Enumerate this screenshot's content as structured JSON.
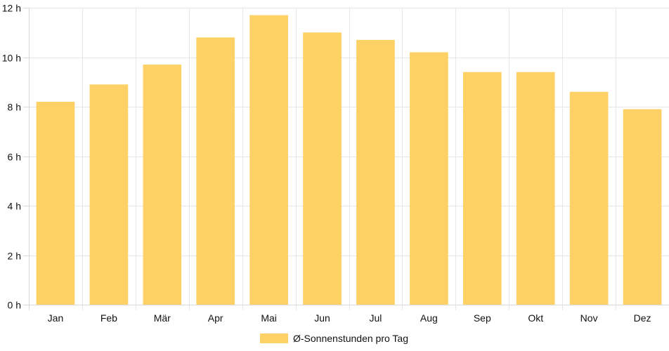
{
  "chart_data": {
    "type": "bar",
    "categories": [
      "Jan",
      "Feb",
      "Mär",
      "Apr",
      "Mai",
      "Jun",
      "Jul",
      "Aug",
      "Sep",
      "Okt",
      "Nov",
      "Dez"
    ],
    "series": [
      {
        "name": "Ø-Sonnenstunden pro Tag",
        "values": [
          8.2,
          8.9,
          9.7,
          10.8,
          11.7,
          11.0,
          10.7,
          10.2,
          9.4,
          9.4,
          8.6,
          7.9
        ],
        "color": "#fed166"
      }
    ],
    "y_ticks": [
      "0 h",
      "2 h",
      "4 h",
      "6 h",
      "8 h",
      "10 h",
      "12 h"
    ],
    "ylim": [
      0,
      12
    ],
    "grid": true,
    "legend_position": "bottom"
  }
}
